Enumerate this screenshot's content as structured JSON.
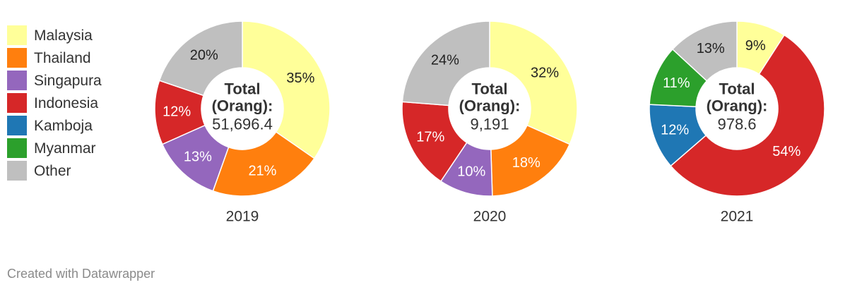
{
  "legend": [
    {
      "label": "Malaysia",
      "color": "#ffff99"
    },
    {
      "label": "Thailand",
      "color": "#ff7f0e"
    },
    {
      "label": "Singapura",
      "color": "#9467bd"
    },
    {
      "label": "Indonesia",
      "color": "#d62728"
    },
    {
      "label": "Kamboja",
      "color": "#1f77b4"
    },
    {
      "label": "Myanmar",
      "color": "#2ca02c"
    },
    {
      "label": "Other",
      "color": "#bfbfbf"
    }
  ],
  "chart_data": [
    {
      "type": "pie",
      "title": "2019",
      "center_label": [
        "Total",
        "(Orang):"
      ],
      "center_value": "51,696.4",
      "series": [
        {
          "name": "Malaysia",
          "value": 35,
          "color": "#ffff99",
          "label": "35%"
        },
        {
          "name": "Thailand",
          "value": 21,
          "color": "#ff7f0e",
          "label": "21%"
        },
        {
          "name": "Singapura",
          "value": 13,
          "color": "#9467bd",
          "label": "13%"
        },
        {
          "name": "Indonesia",
          "value": 12,
          "color": "#d62728",
          "label": "12%"
        },
        {
          "name": "Other",
          "value": 20,
          "color": "#bfbfbf",
          "label": "20%"
        }
      ]
    },
    {
      "type": "pie",
      "title": "2020",
      "center_label": [
        "Total",
        "(Orang):"
      ],
      "center_value": "9,191",
      "series": [
        {
          "name": "Malaysia",
          "value": 32,
          "color": "#ffff99",
          "label": "32%"
        },
        {
          "name": "Thailand",
          "value": 18,
          "color": "#ff7f0e",
          "label": "18%"
        },
        {
          "name": "Singapura",
          "value": 10,
          "color": "#9467bd",
          "label": "10%"
        },
        {
          "name": "Indonesia",
          "value": 17,
          "color": "#d62728",
          "label": "17%"
        },
        {
          "name": "Other",
          "value": 24,
          "color": "#bfbfbf",
          "label": "24%"
        }
      ]
    },
    {
      "type": "pie",
      "title": "2021",
      "center_label": [
        "Total",
        "(Orang):"
      ],
      "center_value": "978.6",
      "series": [
        {
          "name": "Malaysia",
          "value": 9,
          "color": "#ffff99",
          "label": "9%"
        },
        {
          "name": "Indonesia",
          "value": 54,
          "color": "#d62728",
          "label": "54%"
        },
        {
          "name": "Kamboja",
          "value": 12,
          "color": "#1f77b4",
          "label": "12%"
        },
        {
          "name": "Myanmar",
          "value": 11,
          "color": "#2ca02c",
          "label": "11%"
        },
        {
          "name": "Other",
          "value": 13,
          "color": "#bfbfbf",
          "label": "13%"
        }
      ]
    }
  ],
  "footer": "Created with Datawrapper"
}
